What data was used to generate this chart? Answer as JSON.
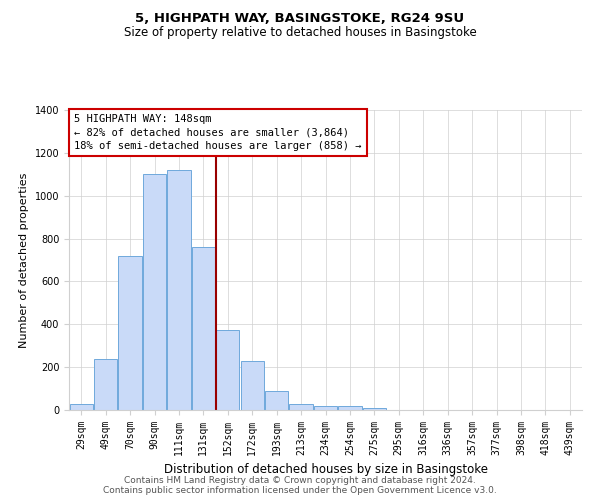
{
  "title1": "5, HIGHPATH WAY, BASINGSTOKE, RG24 9SU",
  "title2": "Size of property relative to detached houses in Basingstoke",
  "xlabel": "Distribution of detached houses by size in Basingstoke",
  "ylabel": "Number of detached properties",
  "bar_labels": [
    "29sqm",
    "49sqm",
    "70sqm",
    "90sqm",
    "111sqm",
    "131sqm",
    "152sqm",
    "172sqm",
    "193sqm",
    "213sqm",
    "234sqm",
    "254sqm",
    "275sqm",
    "295sqm",
    "316sqm",
    "336sqm",
    "357sqm",
    "377sqm",
    "398sqm",
    "418sqm",
    "439sqm"
  ],
  "bar_values": [
    30,
    240,
    720,
    1100,
    1120,
    760,
    375,
    230,
    90,
    30,
    20,
    20,
    10,
    0,
    0,
    0,
    0,
    0,
    0,
    0,
    0
  ],
  "bar_color": "#c9daf8",
  "bar_edge_color": "#6fa8dc",
  "vline_x": 5.5,
  "vline_color": "#990000",
  "annotation_title": "5 HIGHPATH WAY: 148sqm",
  "annotation_line1": "← 82% of detached houses are smaller (3,864)",
  "annotation_line2": "18% of semi-detached houses are larger (858) →",
  "annotation_box_color": "#ffffff",
  "annotation_border_color": "#cc0000",
  "ylim": [
    0,
    1400
  ],
  "yticks": [
    0,
    200,
    400,
    600,
    800,
    1000,
    1200,
    1400
  ],
  "footer1": "Contains HM Land Registry data © Crown copyright and database right 2024.",
  "footer2": "Contains public sector information licensed under the Open Government Licence v3.0.",
  "background_color": "#ffffff",
  "grid_color": "#d0d0d0",
  "title1_fontsize": 9.5,
  "title2_fontsize": 8.5,
  "xlabel_fontsize": 8.5,
  "ylabel_fontsize": 8,
  "tick_fontsize": 7,
  "annotation_fontsize": 7.5,
  "footer_fontsize": 6.5
}
